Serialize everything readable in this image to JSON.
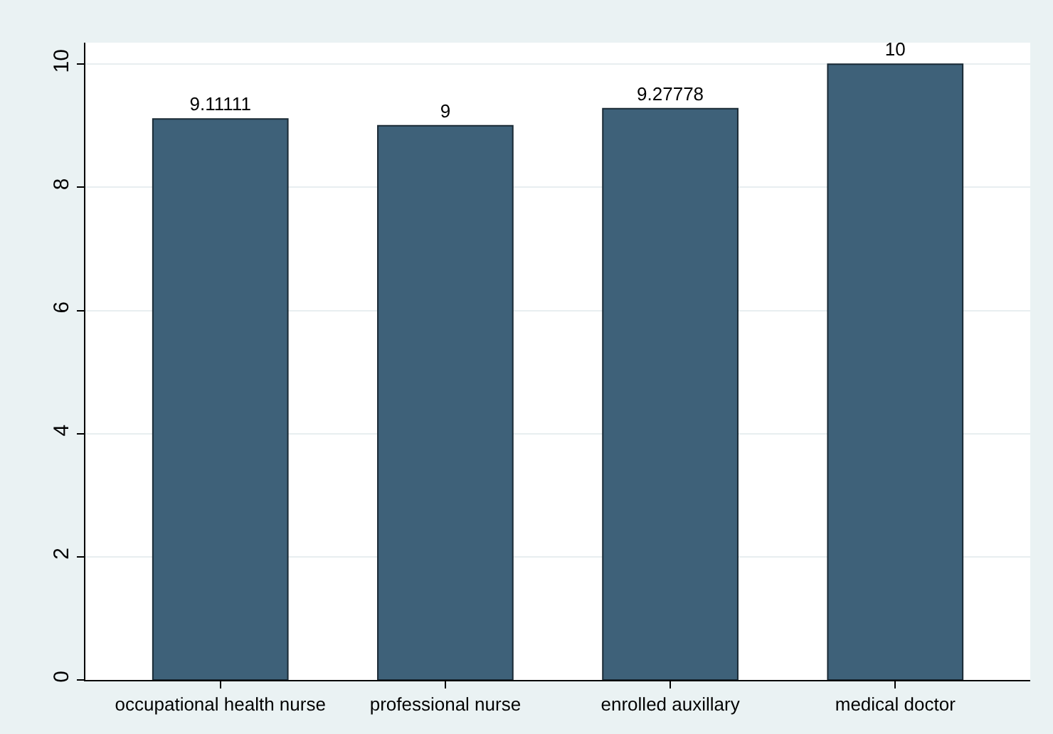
{
  "chart_data": {
    "type": "bar",
    "categories": [
      "occupational health nurse",
      "professional nurse",
      "enrolled auxillary",
      "medical doctor"
    ],
    "values": [
      9.11111,
      9,
      9.27778,
      10
    ],
    "color": "#3e6179",
    "data_labels": true,
    "ylim": [
      0,
      10.35
    ],
    "yticks": [
      0,
      2,
      4,
      6,
      8,
      10
    ],
    "grid": "y",
    "legend": false
  }
}
